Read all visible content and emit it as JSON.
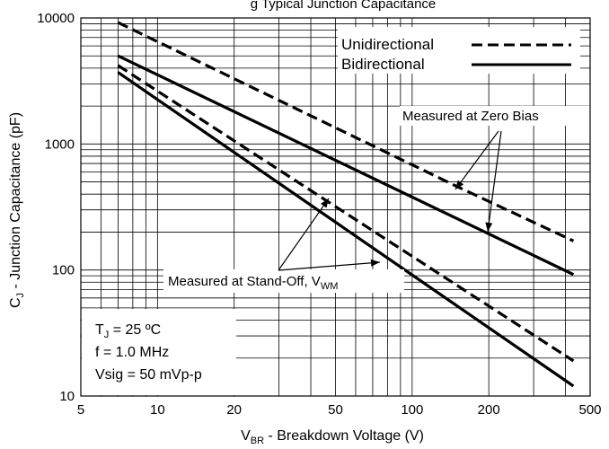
{
  "chart_data": {
    "type": "line",
    "title": "",
    "title_partial_visible": "g  Typical Junction Capacitance",
    "xscale": "log",
    "yscale": "log",
    "xlim": [
      5,
      500
    ],
    "ylim": [
      10,
      10000
    ],
    "xticks": [
      5,
      10,
      20,
      50,
      100,
      200,
      500
    ],
    "xtick_labels": [
      "5",
      "10",
      "20",
      "50",
      "100",
      "200",
      "500"
    ],
    "yticks": [
      10,
      100,
      1000,
      10000
    ],
    "ytick_labels": [
      "10",
      "100",
      "1000",
      "10000"
    ],
    "xlabel": {
      "main": "V",
      "sub": "BR",
      "rest": " - Breakdown Voltage (V)"
    },
    "ylabel": {
      "main": "C",
      "sub": "J",
      "rest": " - Junction Capacitance (pF)"
    },
    "grid": true,
    "legend_position": "top-right",
    "legend": [
      {
        "label": "Unidirectional",
        "style": "dashed"
      },
      {
        "label": "Bidirectional",
        "style": "solid"
      }
    ],
    "series": [
      {
        "name": "Unidirectional",
        "group": "zero-bias",
        "style": "dashed",
        "x": [
          7,
          150,
          430
        ],
        "y": [
          9200,
          460,
          170
        ]
      },
      {
        "name": "Bidirectional",
        "group": "zero-bias",
        "style": "solid",
        "x": [
          7,
          430
        ],
        "y": [
          5000,
          92
        ]
      },
      {
        "name": "Unidirectional",
        "group": "stand-off",
        "style": "dashed",
        "x": [
          7,
          430
        ],
        "y": [
          4200,
          19
        ]
      },
      {
        "name": "Bidirectional",
        "group": "stand-off",
        "style": "solid",
        "x": [
          7,
          430
        ],
        "y": [
          3700,
          12
        ]
      }
    ],
    "annotations": {
      "zero_bias": "Measured at Zero Bias",
      "standoff": {
        "main": "Measured at Stand-Off, V",
        "sub": "WM"
      }
    },
    "conditions": [
      {
        "main": "T",
        "sub": "J",
        "rest": " = 25 ºC"
      },
      {
        "main": "f = 1.0 MHz",
        "sub": "",
        "rest": ""
      },
      {
        "main": "Vsig = 50 mVp-p",
        "sub": "",
        "rest": ""
      }
    ],
    "colors": {
      "line": "#000000",
      "grid": "#000000",
      "background": "#ffffff"
    }
  }
}
